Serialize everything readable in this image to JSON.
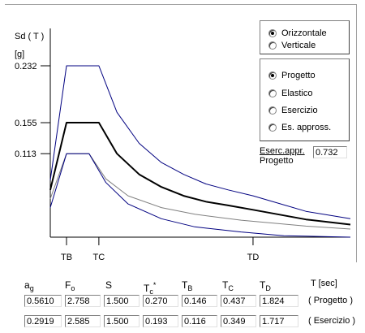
{
  "chart_data": {
    "type": "line",
    "ylabel": "Sd ( T )",
    "yunit": "[g]",
    "ytick_labels": [
      "0.232",
      "0.155",
      "0.113"
    ],
    "xtick_labels": [
      "TB",
      "TC",
      "TD"
    ],
    "yticks": [
      0.232,
      0.155,
      0.113
    ],
    "xticks": [
      0.146,
      0.437,
      1.824
    ],
    "series": [
      {
        "color": "#000080",
        "points": [
          [
            0,
            0.077
          ],
          [
            0.146,
            0.232
          ],
          [
            0.437,
            0.232
          ],
          [
            0.6,
            0.169
          ],
          [
            0.8,
            0.127
          ],
          [
            1.0,
            0.101
          ],
          [
            1.2,
            0.085
          ],
          [
            1.4,
            0.072
          ],
          [
            1.6,
            0.064
          ],
          [
            1.824,
            0.056
          ],
          [
            2.3,
            0.035
          ],
          [
            2.7,
            0.025
          ]
        ]
      },
      {
        "color": "#000000",
        "points": [
          [
            0,
            0.064
          ],
          [
            0.146,
            0.155
          ],
          [
            0.437,
            0.155
          ],
          [
            0.6,
            0.113
          ],
          [
            0.8,
            0.085
          ],
          [
            1.0,
            0.068
          ],
          [
            1.2,
            0.056
          ],
          [
            1.4,
            0.048
          ],
          [
            1.6,
            0.043
          ],
          [
            1.824,
            0.037
          ],
          [
            2.3,
            0.024
          ],
          [
            2.7,
            0.017
          ]
        ]
      },
      {
        "color": "#808080",
        "points": [
          [
            0,
            0.052
          ],
          [
            0.146,
            0.113
          ],
          [
            0.349,
            0.113
          ],
          [
            0.5,
            0.079
          ],
          [
            0.7,
            0.056
          ],
          [
            1.0,
            0.04
          ],
          [
            1.3,
            0.031
          ],
          [
            1.717,
            0.023
          ],
          [
            2.3,
            0.015
          ],
          [
            2.7,
            0.011
          ]
        ]
      },
      {
        "color": "#000080",
        "points": [
          [
            0,
            0.04
          ],
          [
            0.146,
            0.113
          ],
          [
            0.349,
            0.113
          ],
          [
            0.5,
            0.074
          ],
          [
            0.7,
            0.045
          ],
          [
            1.0,
            0.025
          ],
          [
            1.3,
            0.014
          ],
          [
            1.717,
            0.007
          ],
          [
            2.1,
            0.002
          ],
          [
            2.7,
            0.0
          ]
        ]
      }
    ]
  },
  "direction_options": [
    {
      "label": "Orizzontale",
      "checked": true
    },
    {
      "label": "Verticale",
      "checked": false
    }
  ],
  "spectrum_options": [
    {
      "label": "Progetto",
      "checked": true
    },
    {
      "label": "Elastico",
      "checked": false
    },
    {
      "label": "Esercizio",
      "checked": false
    },
    {
      "label": "Es. appross.",
      "checked": false
    }
  ],
  "eserc_appr": {
    "label_line1": "Eserc.appr.",
    "label_line2": "Progetto",
    "value": "0.732"
  },
  "params": {
    "headers": [
      {
        "base": "a",
        "sub": "g",
        "sup": ""
      },
      {
        "base": "F",
        "sub": "o",
        "sup": ""
      },
      {
        "base": "S",
        "sub": "",
        "sup": ""
      },
      {
        "base": "T",
        "sub": "c",
        "sup": "*"
      },
      {
        "base": "T",
        "sub": "B",
        "sup": ""
      },
      {
        "base": "T",
        "sub": "C",
        "sup": ""
      },
      {
        "base": "T",
        "sub": "D",
        "sup": ""
      }
    ],
    "unit": "T [sec]",
    "rows": [
      {
        "label": "( Progetto )",
        "values": [
          "0.5610",
          "2.758",
          "1.500",
          "0.270",
          "0.146",
          "0.437",
          "1.824"
        ]
      },
      {
        "label": "( Esercizio )",
        "values": [
          "0.2919",
          "2.585",
          "1.500",
          "0.193",
          "0.116",
          "0.349",
          "1.717"
        ]
      }
    ]
  }
}
